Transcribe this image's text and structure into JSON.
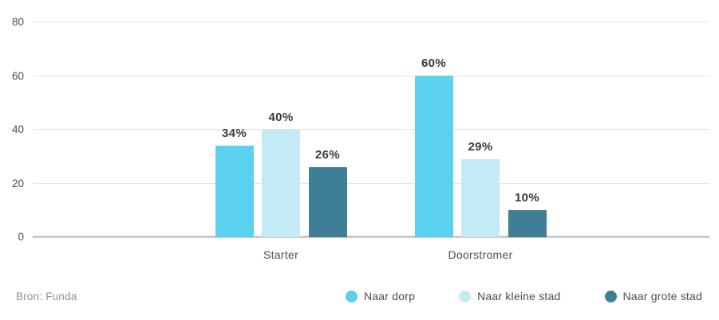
{
  "chart_data": {
    "type": "bar",
    "categories": [
      "Starter",
      "Doorstromer"
    ],
    "series": [
      {
        "name": "Naar dorp",
        "color": "#5bd1ef",
        "values": [
          34,
          60
        ],
        "labels": [
          "34%",
          "60%"
        ]
      },
      {
        "name": "Naar kleine stad",
        "color": "#c4eaf5",
        "values": [
          40,
          29
        ],
        "labels": [
          "40%",
          "29%"
        ]
      },
      {
        "name": "Naar grote stad",
        "color": "#3f7f95",
        "values": [
          26,
          10
        ],
        "labels": [
          "26%",
          "10%"
        ]
      }
    ],
    "title": "",
    "xlabel": "",
    "ylabel": "",
    "ylim": [
      0,
      80
    ],
    "yticks": [
      0,
      20,
      40,
      60,
      80
    ],
    "ytick_labels": [
      "0",
      "20",
      "40",
      "60",
      "80"
    ],
    "grid": true,
    "legend_position": "bottom-right",
    "value_label_suffix": "%"
  },
  "footer": {
    "source": "Bron: Funda"
  }
}
